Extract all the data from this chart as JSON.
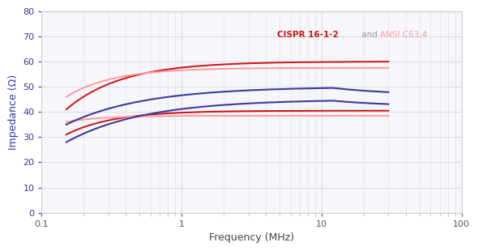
{
  "xlabel": "Frequency (MHz)",
  "ylabel": "Impedance (Ω)",
  "xlim": [
    0.1,
    100
  ],
  "ylim": [
    0,
    80
  ],
  "yticks": [
    0,
    10,
    20,
    30,
    40,
    50,
    60,
    70,
    80
  ],
  "bg_color": "#ffffff",
  "plot_bg_color": "#f7f7fb",
  "grid_color": "#d8d8e8",
  "annotation_text_cispr": "CISPR 16-1-2",
  "annotation_text_and": " and ",
  "annotation_text_ansi": "ANSI C63.4",
  "annotation_color_cispr": "#cc1111",
  "annotation_color_ansi": "#ff9999",
  "annotation_color_and": "#999999",
  "ylabel_color": "#3333aa",
  "xlabel_color": "#444444",
  "blue_color": "#3a3a9f",
  "red_dark_color": "#cc1111",
  "red_light_color": "#ff9999"
}
